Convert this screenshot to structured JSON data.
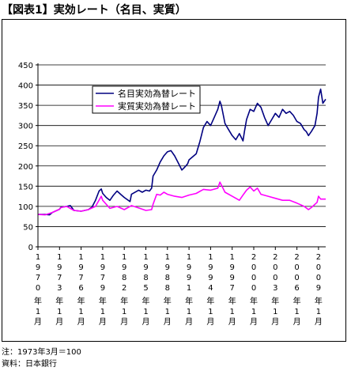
{
  "title": "【図表1】実効レート（名目、実質）",
  "note": "注：1973年3月＝100",
  "source": "資料：日本銀行",
  "chart_data": {
    "type": "line",
    "ylim": [
      0,
      450
    ],
    "yticks": [
      0,
      50,
      100,
      150,
      200,
      250,
      300,
      350,
      400,
      450
    ],
    "grid": true,
    "legend_position": "inside, upper-left of center",
    "x_tick_labels": [
      {
        "year": "1970",
        "month": "1"
      },
      {
        "year": "1973",
        "month": "1"
      },
      {
        "year": "1976",
        "month": "1"
      },
      {
        "year": "1979",
        "month": "1"
      },
      {
        "year": "1982",
        "month": "1"
      },
      {
        "year": "1985",
        "month": "1"
      },
      {
        "year": "1988",
        "month": "1"
      },
      {
        "year": "1991",
        "month": "1"
      },
      {
        "year": "1994",
        "month": "1"
      },
      {
        "year": "1997",
        "month": "1"
      },
      {
        "year": "2000",
        "month": "1"
      },
      {
        "year": "2003",
        "month": "1"
      },
      {
        "year": "2006",
        "month": "1"
      },
      {
        "year": "2009",
        "month": "1"
      }
    ],
    "tick_year_suffix": "年",
    "tick_month_suffix": "月",
    "series": [
      {
        "name": "名目実効為替レート",
        "color": "#000080",
        "x": [
          1970.0,
          1971.0,
          1971.6,
          1972.0,
          1973.0,
          1973.2,
          1974.0,
          1974.5,
          1975.0,
          1976.0,
          1977.0,
          1977.5,
          1978.0,
          1978.5,
          1978.8,
          1979.0,
          1979.5,
          1980.0,
          1980.5,
          1981.0,
          1981.5,
          1982.0,
          1982.8,
          1983.0,
          1984.0,
          1984.5,
          1985.0,
          1985.5,
          1985.8,
          1986.0,
          1986.5,
          1987.0,
          1987.5,
          1988.0,
          1988.5,
          1989.0,
          1989.5,
          1990.0,
          1990.3,
          1990.8,
          1991.0,
          1992.0,
          1992.5,
          1993.0,
          1993.5,
          1994.0,
          1994.5,
          1995.0,
          1995.3,
          1995.5,
          1996.0,
          1996.5,
          1997.0,
          1997.5,
          1998.0,
          1998.5,
          1998.7,
          1999.0,
          1999.5,
          2000.0,
          2000.5,
          2001.0,
          2001.5,
          2002.0,
          2002.5,
          2003.0,
          2003.5,
          2004.0,
          2004.5,
          2005.0,
          2005.5,
          2006.0,
          2006.5,
          2007.0,
          2007.3,
          2007.6,
          2008.0,
          2008.5,
          2008.8,
          2009.0,
          2009.3,
          2009.6,
          2010.0
        ],
        "y": [
          80,
          80,
          79,
          85,
          93,
          98,
          100,
          102,
          90,
          88,
          92,
          98,
          115,
          138,
          143,
          132,
          122,
          115,
          128,
          138,
          130,
          122,
          112,
          130,
          140,
          135,
          140,
          138,
          145,
          175,
          190,
          210,
          225,
          235,
          238,
          225,
          208,
          190,
          195,
          205,
          215,
          230,
          260,
          295,
          310,
          300,
          320,
          340,
          360,
          350,
          305,
          290,
          275,
          265,
          280,
          262,
          285,
          315,
          340,
          335,
          355,
          345,
          320,
          300,
          315,
          330,
          320,
          340,
          330,
          335,
          325,
          310,
          305,
          290,
          285,
          275,
          285,
          300,
          330,
          370,
          390,
          355,
          365
        ]
      },
      {
        "name": "実質実効為替レート",
        "color": "#ff00ff",
        "x": [
          1970.0,
          1971.0,
          1972.0,
          1973.0,
          1973.2,
          1974.0,
          1975.0,
          1976.0,
          1977.0,
          1978.0,
          1978.8,
          1979.0,
          1980.0,
          1981.0,
          1982.0,
          1983.0,
          1984.0,
          1985.0,
          1985.8,
          1986.0,
          1986.5,
          1987.0,
          1987.5,
          1988.0,
          1989.0,
          1990.0,
          1991.0,
          1992.0,
          1993.0,
          1994.0,
          1995.0,
          1995.3,
          1996.0,
          1997.0,
          1998.0,
          1998.5,
          1999.0,
          1999.5,
          2000.0,
          2000.5,
          2001.0,
          2002.0,
          2003.0,
          2004.0,
          2005.0,
          2006.0,
          2007.0,
          2007.6,
          2008.0,
          2008.8,
          2009.0,
          2009.3,
          2010.0
        ],
        "y": [
          80,
          79,
          85,
          93,
          97,
          100,
          90,
          88,
          92,
          100,
          125,
          115,
          95,
          100,
          92,
          102,
          96,
          90,
          92,
          105,
          130,
          128,
          135,
          130,
          125,
          122,
          128,
          132,
          142,
          140,
          145,
          160,
          135,
          125,
          115,
          128,
          140,
          148,
          138,
          145,
          130,
          125,
          120,
          115,
          115,
          108,
          100,
          92,
          97,
          110,
          125,
          118,
          118
        ]
      }
    ]
  }
}
